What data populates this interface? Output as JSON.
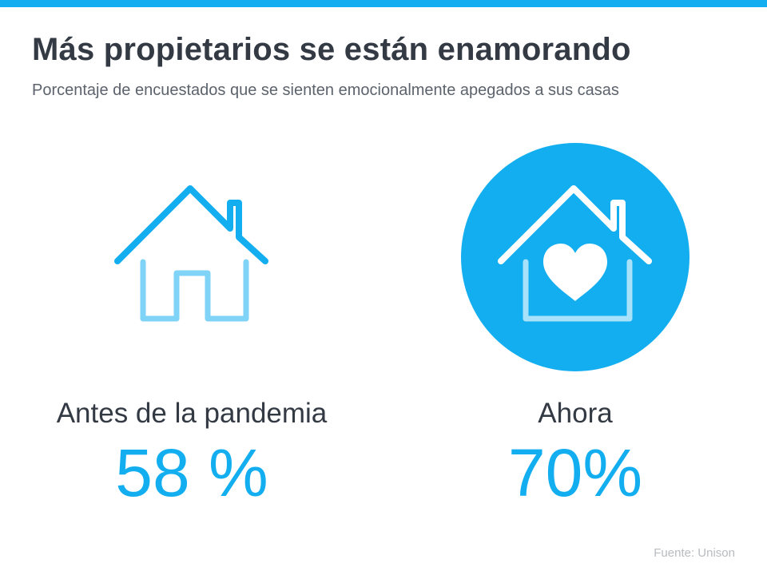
{
  "header": {
    "title": "Más propietarios se están enamorando",
    "subtitle": "Porcentaje de encuestados que se sienten emocionalmente apegados a sus casas"
  },
  "stats": [
    {
      "label": "Antes de la pandemia",
      "value": "58 %",
      "icon": "house-icon"
    },
    {
      "label": "Ahora",
      "value": "70%",
      "icon": "house-heart-icon"
    }
  ],
  "footer": {
    "source_label": "Fuente:",
    "source_name": "Unison"
  },
  "colors": {
    "accent": "#13aef0",
    "accent_light": "#7fd3f7",
    "title": "#333a44",
    "subtitle": "#5c636c",
    "source": "#b8bcc1"
  }
}
